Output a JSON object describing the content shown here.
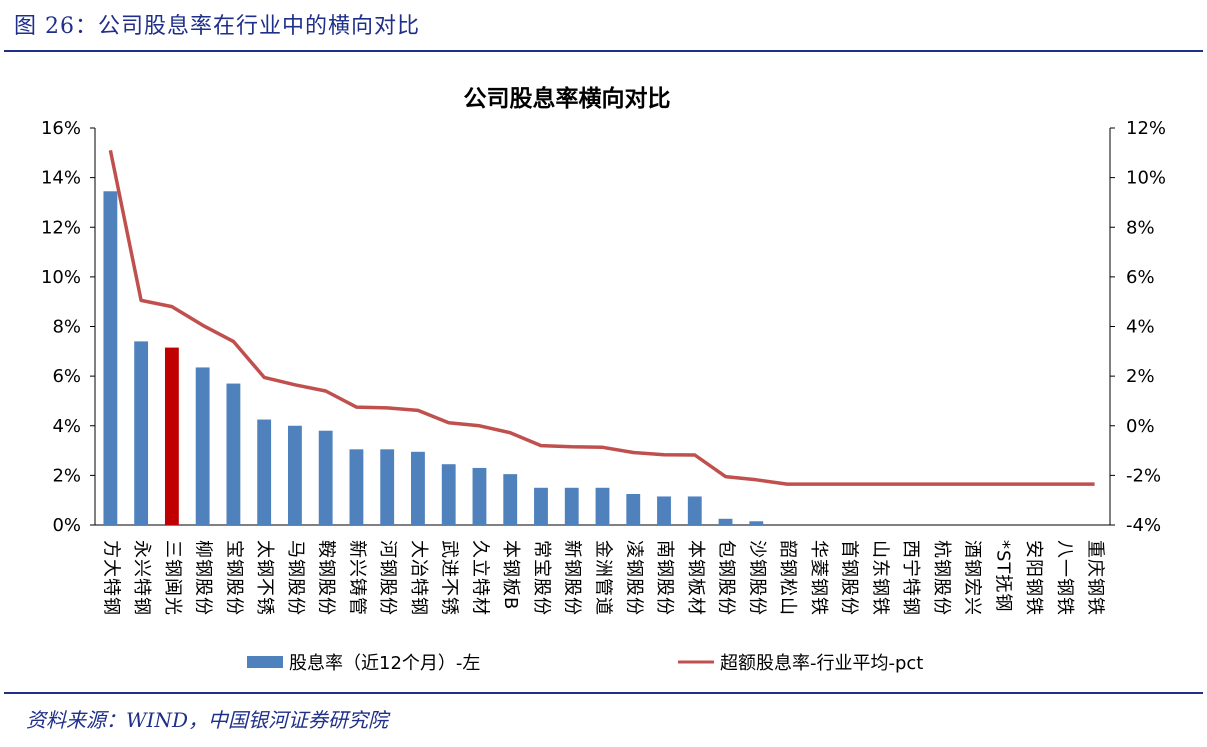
{
  "figure": {
    "title": "图 26：公司股息率在行业中的横向对比",
    "source": "资料来源：WIND，中国银河证券研究院",
    "accent_color": "#1f2f8a"
  },
  "chart_data": {
    "type": "bar",
    "title": "公司股息率横向对比",
    "categories": [
      "方大特钢",
      "永兴特钢",
      "三钢闽光",
      "柳钢股份",
      "宝钢股份",
      "太钢不锈",
      "马钢股份",
      "鞍钢股份",
      "新兴铸管",
      "河钢股份",
      "大冶特钢",
      "武进不锈",
      "久立特材",
      "本钢板B",
      "常宝股份",
      "新钢股份",
      "金洲管道",
      "凌钢股份",
      "南钢股份",
      "本钢板材",
      "包钢股份",
      "沙钢股份",
      "韶钢松山",
      "华菱钢铁",
      "首钢股份",
      "山东钢铁",
      "西宁特钢",
      "杭钢股份",
      "酒钢宏兴",
      "*ST抚钢",
      "安阳钢铁",
      "八一钢铁",
      "重庆钢铁"
    ],
    "highlight_index": 2,
    "series": [
      {
        "name": "股息率（近12个月）-左",
        "type": "bar",
        "axis": "left",
        "color": "#4f81bd",
        "highlight_color": "#c00000",
        "values": [
          13.45,
          7.4,
          7.15,
          6.35,
          5.7,
          4.25,
          4.0,
          3.8,
          3.05,
          3.05,
          2.95,
          2.45,
          2.3,
          2.05,
          1.5,
          1.5,
          1.5,
          1.25,
          1.15,
          1.15,
          0.25,
          0.15,
          0,
          0,
          0,
          0,
          0,
          0,
          0,
          0,
          0,
          0,
          0
        ]
      },
      {
        "name": "超额股息率-行业平均-pct",
        "type": "line",
        "axis": "right",
        "color": "#c0504d",
        "values": [
          11.1,
          5.05,
          4.8,
          4.05,
          3.4,
          1.95,
          1.65,
          1.4,
          0.75,
          0.72,
          0.62,
          0.12,
          0.0,
          -0.28,
          -0.8,
          -0.85,
          -0.87,
          -1.08,
          -1.17,
          -1.18,
          -2.05,
          -2.18,
          -2.35,
          -2.35,
          -2.35,
          -2.35,
          -2.35,
          -2.35,
          -2.35,
          -2.35,
          -2.35,
          -2.35,
          -2.35
        ]
      }
    ],
    "y_left": {
      "min": 0,
      "max": 16,
      "step": 2,
      "tick_labels": [
        "0%",
        "2%",
        "4%",
        "6%",
        "8%",
        "10%",
        "12%",
        "14%",
        "16%"
      ]
    },
    "y_right": {
      "min": -4,
      "max": 12,
      "step": 2,
      "tick_labels": [
        "-4%",
        "-2%",
        "0%",
        "2%",
        "4%",
        "6%",
        "8%",
        "10%",
        "12%"
      ]
    },
    "grid": false,
    "legend_position": "bottom"
  }
}
